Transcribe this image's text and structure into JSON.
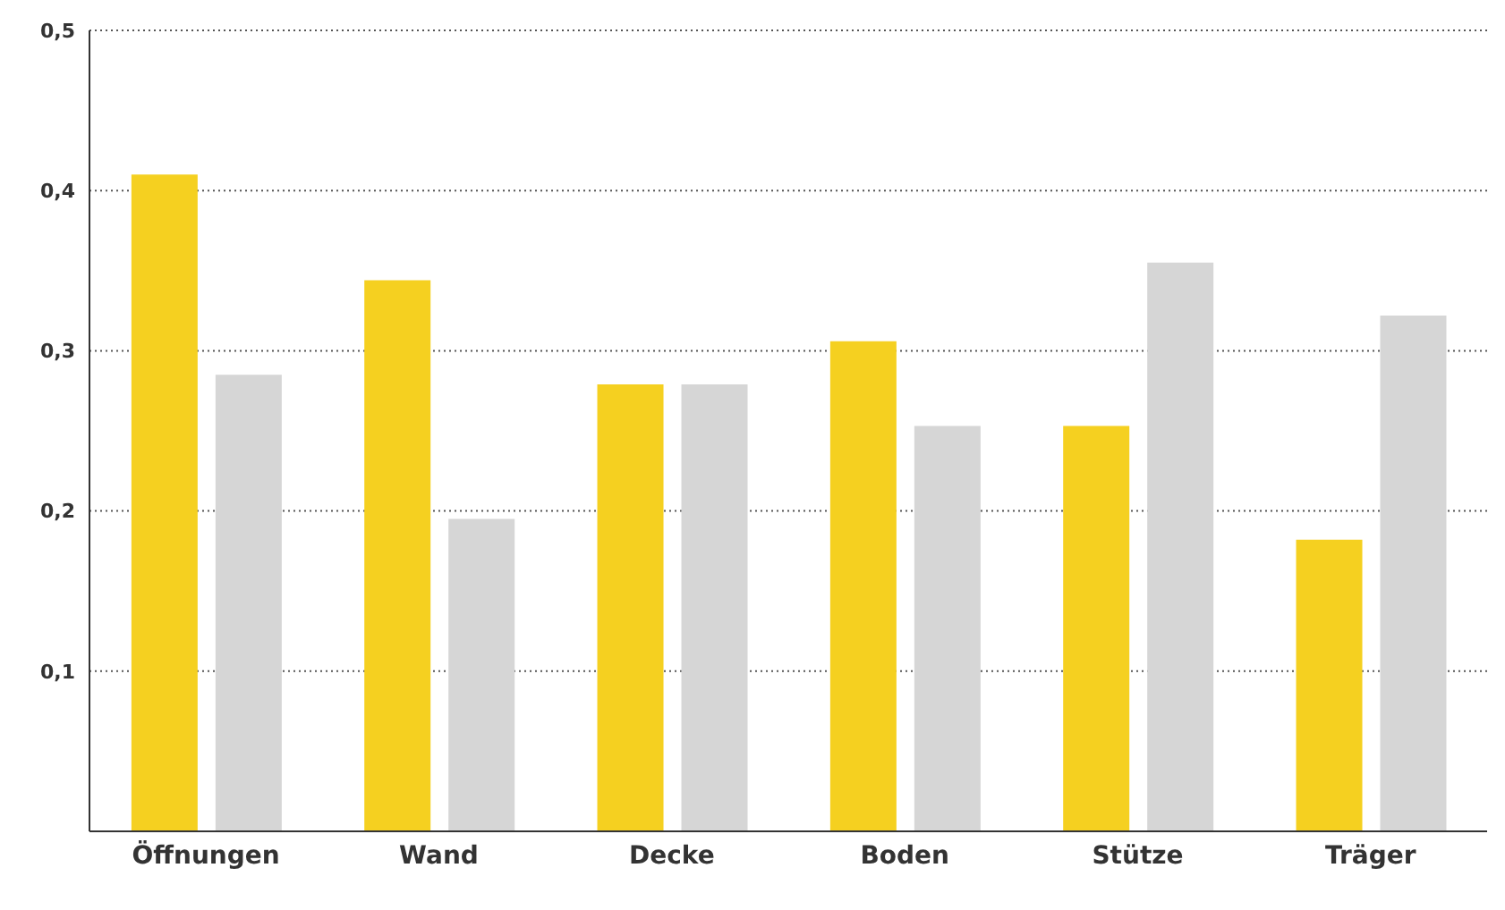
{
  "chart_data": {
    "type": "bar",
    "categories": [
      "Öffnungen",
      "Wand",
      "Decke",
      "Boden",
      "Stütze",
      "Träger"
    ],
    "series": [
      {
        "color": "#f5d020",
        "values": [
          0.41,
          0.344,
          0.279,
          0.306,
          0.253,
          0.182
        ]
      },
      {
        "color": "#d6d6d6",
        "values": [
          0.285,
          0.195,
          0.279,
          0.253,
          0.355,
          0.322
        ]
      }
    ],
    "ylim": [
      0,
      0.5
    ],
    "yticks": [
      {
        "value": 0.1,
        "label": "0,1"
      },
      {
        "value": 0.2,
        "label": "0,2"
      },
      {
        "value": 0.3,
        "label": "0,3"
      },
      {
        "value": 0.4,
        "label": "0,4"
      },
      {
        "value": 0.5,
        "label": "0,5"
      }
    ],
    "grid": "y",
    "legend": false
  }
}
